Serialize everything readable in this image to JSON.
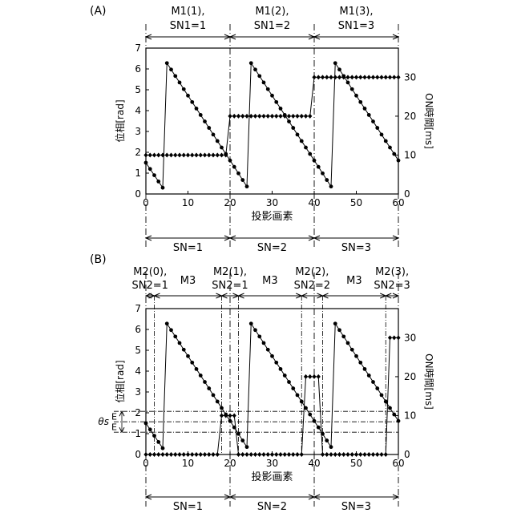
{
  "chart_data": [
    {
      "type": "line",
      "panel_label": "(A)",
      "xlabel": "投影画素",
      "ylabel": "位相[rad]",
      "y2label": "ON時間[ms]",
      "xlim": [
        0,
        60
      ],
      "ylim": [
        0,
        7
      ],
      "y2lim": [
        0,
        37.5
      ],
      "xticks": [
        "0",
        "10",
        "20",
        "30",
        "40",
        "50",
        "60"
      ],
      "yticks": [
        "0",
        "1",
        "2",
        "3",
        "4",
        "5",
        "6",
        "7"
      ],
      "y2ticks": [
        "0",
        "10",
        "20",
        "30"
      ],
      "top_labels": [
        {
          "line1": "M1(1),",
          "line2": "SN1=1"
        },
        {
          "line1": "M1(2),",
          "line2": "SN1=2"
        },
        {
          "line1": "M1(3),",
          "line2": "SN1=3"
        }
      ],
      "bottom_labels": [
        "SN=1",
        "SN=2",
        "SN=3"
      ],
      "period_boundaries": [
        0,
        20,
        40,
        60
      ],
      "series": [
        {
          "axis": "y",
          "style": "circle-markers",
          "segments": [
            {
              "x": [
                0,
                1,
                2,
                3,
                4
              ],
              "y": [
                1.5,
                1.2,
                0.9,
                0.6,
                0.3
              ]
            },
            {
              "x": [
                5,
                6,
                7,
                8,
                9,
                10,
                11,
                12,
                13,
                14,
                15,
                16,
                17,
                18,
                19,
                20,
                21,
                22,
                23,
                24
              ],
              "y": [
                6.28,
                5.97,
                5.66,
                5.35,
                5.03,
                4.72,
                4.41,
                4.1,
                3.79,
                3.48,
                3.17,
                2.85,
                2.54,
                2.23,
                1.92,
                1.61,
                1.3,
                0.99,
                0.67,
                0.36
              ]
            },
            {
              "x": [
                25,
                26,
                27,
                28,
                29,
                30,
                31,
                32,
                33,
                34,
                35,
                36,
                37,
                38,
                39,
                40,
                41,
                42,
                43,
                44
              ],
              "y": [
                6.28,
                5.97,
                5.66,
                5.35,
                5.03,
                4.72,
                4.41,
                4.1,
                3.79,
                3.48,
                3.17,
                2.85,
                2.54,
                2.23,
                1.92,
                1.61,
                1.3,
                0.99,
                0.67,
                0.36
              ]
            },
            {
              "x": [
                45,
                46,
                47,
                48,
                49,
                50,
                51,
                52,
                53,
                54,
                55,
                56,
                57,
                58,
                59,
                60
              ],
              "y": [
                6.28,
                5.97,
                5.66,
                5.35,
                5.03,
                4.72,
                4.41,
                4.1,
                3.79,
                3.48,
                3.17,
                2.85,
                2.54,
                2.23,
                1.92,
                1.61
              ]
            }
          ]
        },
        {
          "axis": "y2",
          "style": "diamond-markers",
          "x": [
            0,
            1,
            2,
            3,
            4,
            5,
            6,
            7,
            8,
            9,
            10,
            11,
            12,
            13,
            14,
            15,
            16,
            17,
            18,
            19,
            20,
            21,
            22,
            23,
            24,
            25,
            26,
            27,
            28,
            29,
            30,
            31,
            32,
            33,
            34,
            35,
            36,
            37,
            38,
            39,
            40,
            41,
            42,
            43,
            44,
            45,
            46,
            47,
            48,
            49,
            50,
            51,
            52,
            53,
            54,
            55,
            56,
            57,
            58,
            59,
            60
          ],
          "y": [
            10,
            10,
            10,
            10,
            10,
            10,
            10,
            10,
            10,
            10,
            10,
            10,
            10,
            10,
            10,
            10,
            10,
            10,
            10,
            10,
            20,
            20,
            20,
            20,
            20,
            20,
            20,
            20,
            20,
            20,
            20,
            20,
            20,
            20,
            20,
            20,
            20,
            20,
            20,
            20,
            30,
            30,
            30,
            30,
            30,
            30,
            30,
            30,
            30,
            30,
            30,
            30,
            30,
            30,
            30,
            30,
            30,
            30,
            30,
            30,
            30
          ]
        }
      ]
    },
    {
      "type": "line",
      "panel_label": "(B)",
      "xlabel": "投影画素",
      "ylabel": "位相[rad]",
      "y2label": "ON時間[ms]",
      "xlim": [
        0,
        60
      ],
      "ylim": [
        0,
        7
      ],
      "y2lim": [
        0,
        37.5
      ],
      "xticks": [
        "0",
        "10",
        "20",
        "30",
        "40",
        "50",
        "60"
      ],
      "yticks": [
        "0",
        "1",
        "2",
        "3",
        "4",
        "5",
        "6",
        "7"
      ],
      "y2ticks": [
        "0",
        "10",
        "20",
        "30"
      ],
      "top_labels": [
        {
          "line1": "M2(0),",
          "line2": "SN2=1"
        },
        {
          "line1": "M3",
          "line2": ""
        },
        {
          "line1": "M2(1),",
          "line2": "SN2=1"
        },
        {
          "line1": "M3",
          "line2": ""
        },
        {
          "line1": "M2(2),",
          "line2": "SN2=2"
        },
        {
          "line1": "M3",
          "line2": ""
        },
        {
          "line1": "M2(3),",
          "line2": "SN2=3"
        }
      ],
      "bottom_labels": [
        "SN=1",
        "SN=2",
        "SN=3"
      ],
      "theta_label": "θs",
      "theta_value": 1.57,
      "e_label": "E",
      "e_band": [
        1.07,
        2.07
      ],
      "period_boundaries": [
        0,
        20,
        40,
        60
      ],
      "window_boundaries": [
        2,
        18,
        22,
        37,
        42,
        57
      ],
      "series": [
        {
          "axis": "y",
          "style": "circle-markers",
          "segments": [
            {
              "x": [
                0,
                1,
                2,
                3,
                4
              ],
              "y": [
                1.5,
                1.2,
                0.9,
                0.6,
                0.3
              ]
            },
            {
              "x": [
                5,
                6,
                7,
                8,
                9,
                10,
                11,
                12,
                13,
                14,
                15,
                16,
                17,
                18,
                19,
                20,
                21,
                22,
                23,
                24
              ],
              "y": [
                6.28,
                5.97,
                5.66,
                5.35,
                5.03,
                4.72,
                4.41,
                4.1,
                3.79,
                3.48,
                3.17,
                2.85,
                2.54,
                2.23,
                1.92,
                1.61,
                1.3,
                0.99,
                0.67,
                0.36
              ]
            },
            {
              "x": [
                25,
                26,
                27,
                28,
                29,
                30,
                31,
                32,
                33,
                34,
                35,
                36,
                37,
                38,
                39,
                40,
                41,
                42,
                43,
                44
              ],
              "y": [
                6.28,
                5.97,
                5.66,
                5.35,
                5.03,
                4.72,
                4.41,
                4.1,
                3.79,
                3.48,
                3.17,
                2.85,
                2.54,
                2.23,
                1.92,
                1.61,
                1.3,
                0.99,
                0.67,
                0.36
              ]
            },
            {
              "x": [
                45,
                46,
                47,
                48,
                49,
                50,
                51,
                52,
                53,
                54,
                55,
                56,
                57,
                58,
                59,
                60
              ],
              "y": [
                6.28,
                5.97,
                5.66,
                5.35,
                5.03,
                4.72,
                4.41,
                4.1,
                3.79,
                3.48,
                3.17,
                2.85,
                2.54,
                2.23,
                1.92,
                1.61
              ]
            }
          ]
        },
        {
          "axis": "y2",
          "style": "diamond-markers",
          "x": [
            0,
            1,
            2,
            3,
            4,
            5,
            6,
            7,
            8,
            9,
            10,
            11,
            12,
            13,
            14,
            15,
            16,
            17,
            18,
            19,
            20,
            21,
            22,
            23,
            24,
            25,
            26,
            27,
            28,
            29,
            30,
            31,
            32,
            33,
            34,
            35,
            36,
            37,
            38,
            39,
            40,
            41,
            42,
            43,
            44,
            45,
            46,
            47,
            48,
            49,
            50,
            51,
            52,
            53,
            54,
            55,
            56,
            57,
            58,
            59,
            60
          ],
          "y": [
            0,
            0,
            0,
            0,
            0,
            0,
            0,
            0,
            0,
            0,
            0,
            0,
            0,
            0,
            0,
            0,
            0,
            0,
            10,
            10,
            10,
            10,
            0,
            0,
            0,
            0,
            0,
            0,
            0,
            0,
            0,
            0,
            0,
            0,
            0,
            0,
            0,
            0,
            20,
            20,
            20,
            20,
            0,
            0,
            0,
            0,
            0,
            0,
            0,
            0,
            0,
            0,
            0,
            0,
            0,
            0,
            0,
            0,
            30,
            30,
            30
          ]
        }
      ]
    }
  ]
}
